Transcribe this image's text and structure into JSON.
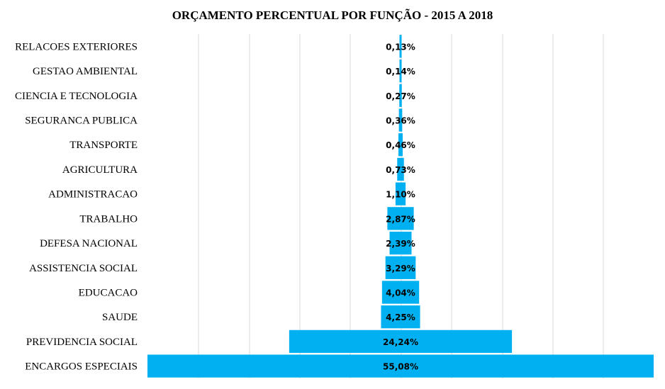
{
  "chart_data": {
    "type": "bar",
    "orientation": "horizontal-centered",
    "title": "ORÇAMENTO PERCENTUAL POR FUNÇÃO - 2015 A 2018",
    "categories": [
      "RELACOES EXTERIORES",
      "GESTAO AMBIENTAL",
      "CIENCIA E TECNOLOGIA",
      "SEGURANCA PUBLICA",
      "TRANSPORTE",
      "AGRICULTURA",
      "ADMINISTRACAO",
      "TRABALHO",
      "DEFESA NACIONAL",
      "ASSISTENCIA SOCIAL",
      "EDUCACAO",
      "SAUDE",
      "PREVIDENCIA SOCIAL",
      "ENCARGOS ESPECIAIS"
    ],
    "values": [
      0.13,
      0.14,
      0.27,
      0.36,
      0.46,
      0.73,
      1.1,
      2.87,
      2.39,
      3.29,
      4.04,
      4.25,
      24.24,
      55.08
    ],
    "labels": [
      "0,13%",
      "0,14%",
      "0,27%",
      "0,36%",
      "0,46%",
      "0,73%",
      "1,10%",
      "2,87%",
      "2,39%",
      "3,29%",
      "4,04%",
      "4,25%",
      "24,24%",
      "55,08%"
    ],
    "xlim": [
      0,
      55.08
    ],
    "grid": true,
    "legend": "none",
    "bar_color": "#00b0f0"
  }
}
